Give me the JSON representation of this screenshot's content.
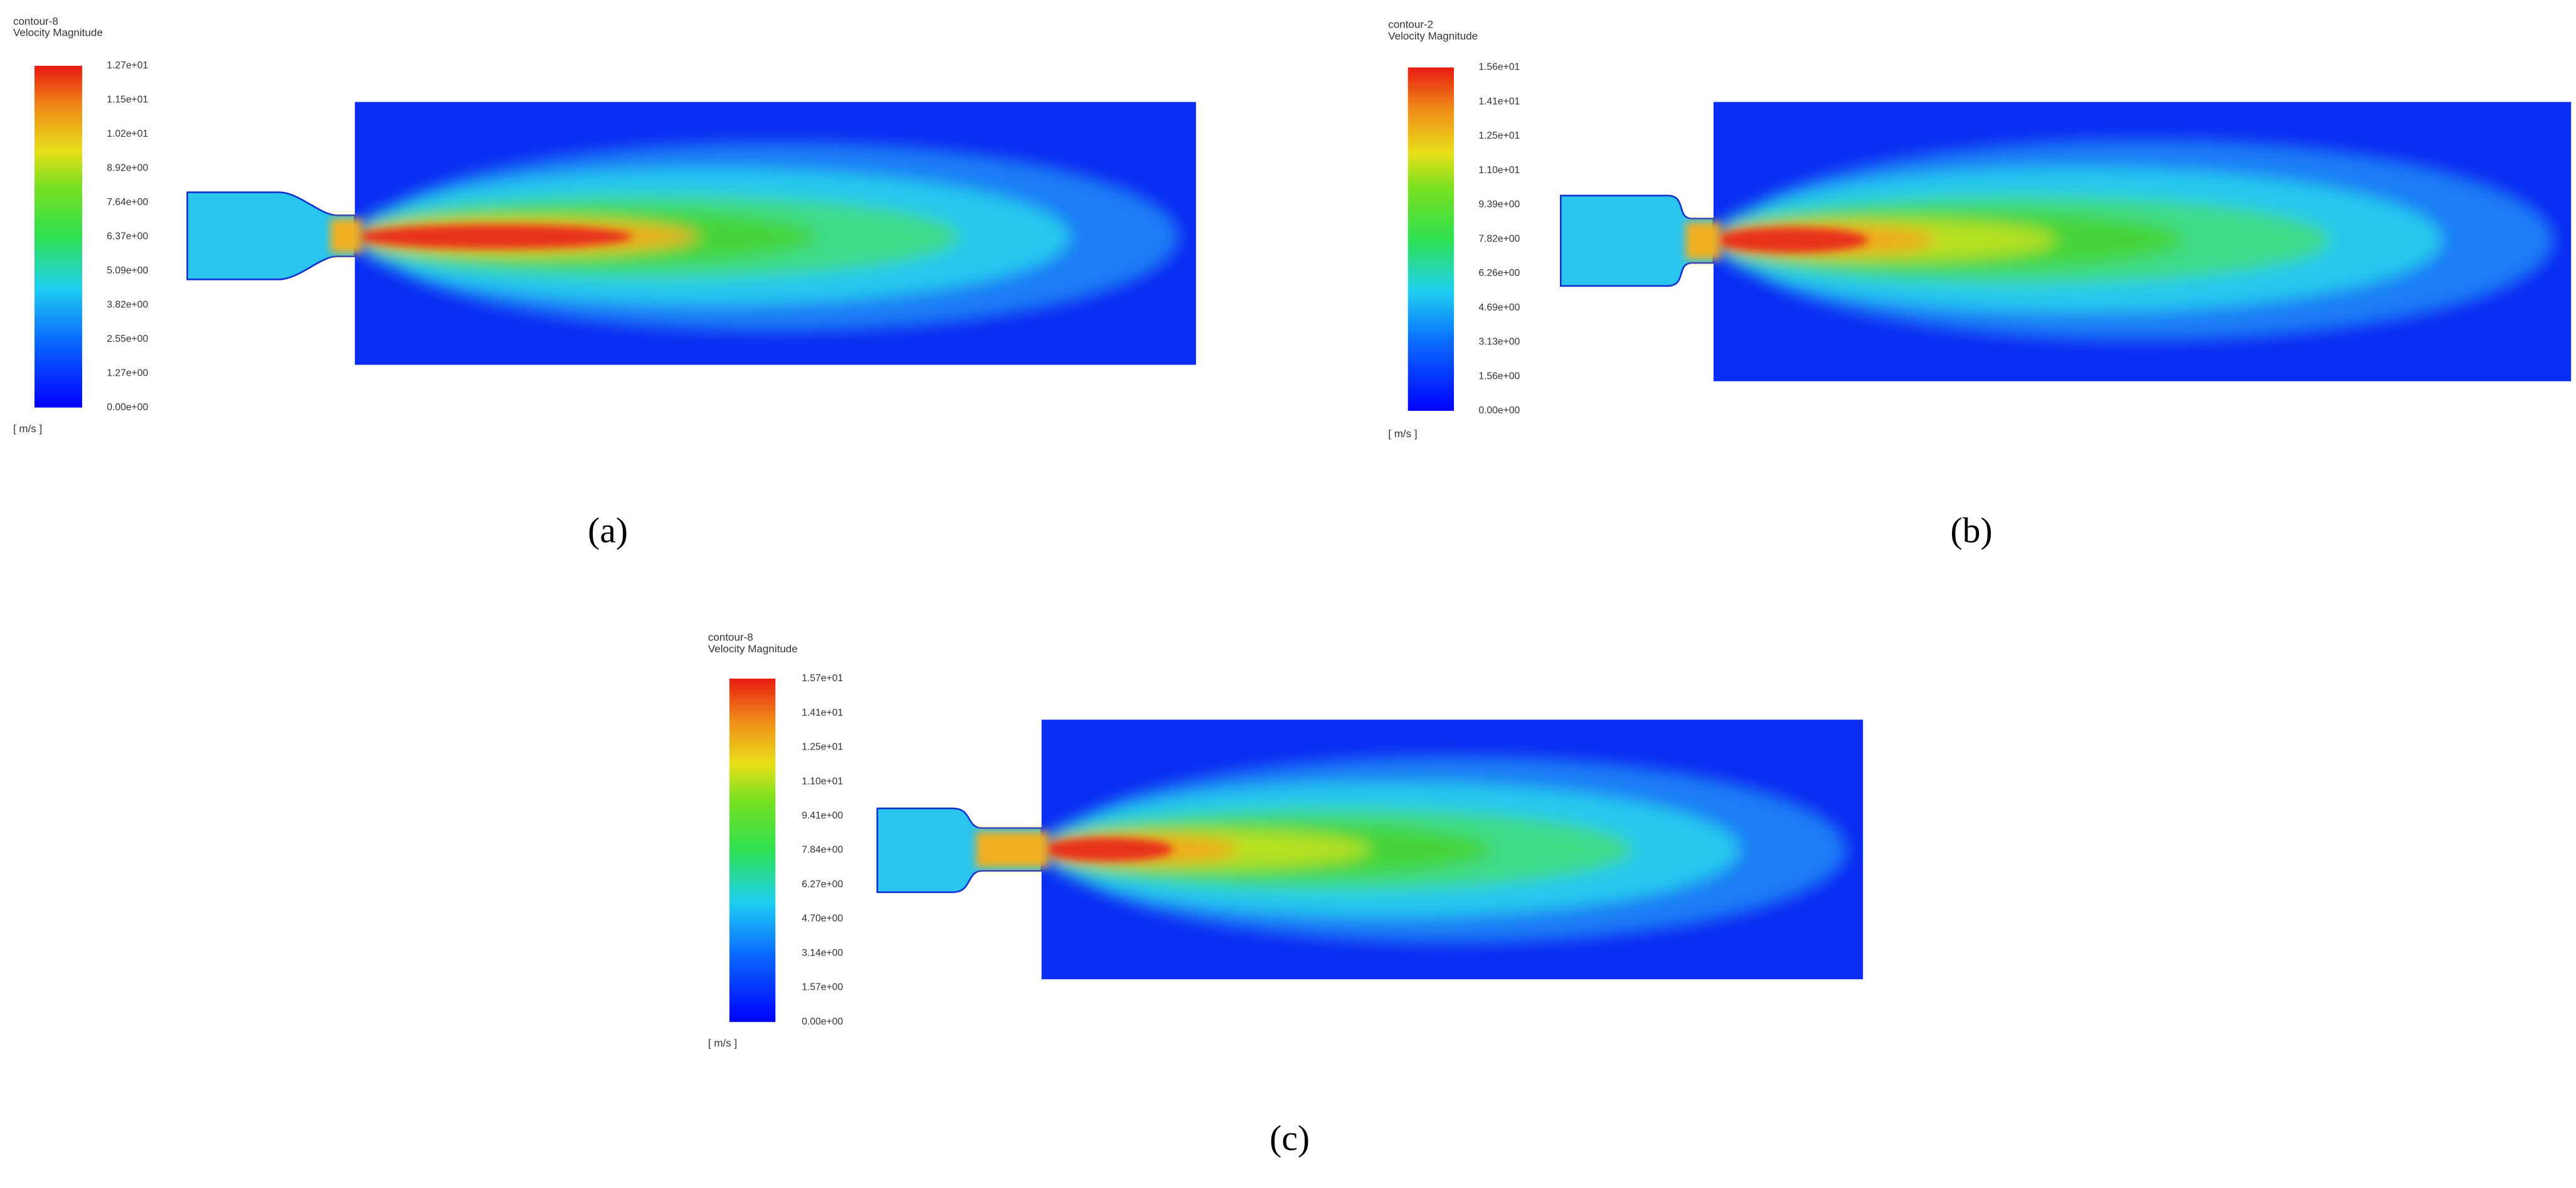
{
  "panels": [
    {
      "contour": "contour-8",
      "variable": "Velocity Magnitude",
      "scale_labels": [
        "1.27e+01",
        "1.15e+01",
        "1.02e+01",
        "8.92e+00",
        "7.64e+00",
        "6.37e+00",
        "5.09e+00",
        "3.82e+00",
        "2.55e+00",
        "1.27e+00",
        "0.00e+00"
      ],
      "unit": "[ m/s ]",
      "caption": "(a)"
    },
    {
      "contour": "contour-2",
      "variable": "Velocity Magnitude",
      "scale_labels": [
        "1.56e+01",
        "1.41e+01",
        "1.25e+01",
        "1.10e+01",
        "9.39e+00",
        "7.82e+00",
        "6.26e+00",
        "4.69e+00",
        "3.13e+00",
        "1.56e+00",
        "0.00e+00"
      ],
      "unit": "[ m/s ]",
      "caption": "(b)"
    },
    {
      "contour": "contour-8",
      "variable": "Velocity Magnitude",
      "scale_labels": [
        "1.57e+01",
        "1.41e+01",
        "1.25e+01",
        "1.10e+01",
        "9.41e+00",
        "7.84e+00",
        "6.27e+00",
        "4.70e+00",
        "3.14e+00",
        "1.57e+00",
        "0.00e+00"
      ],
      "unit": "[ m/s ]",
      "caption": "(c)"
    }
  ]
}
